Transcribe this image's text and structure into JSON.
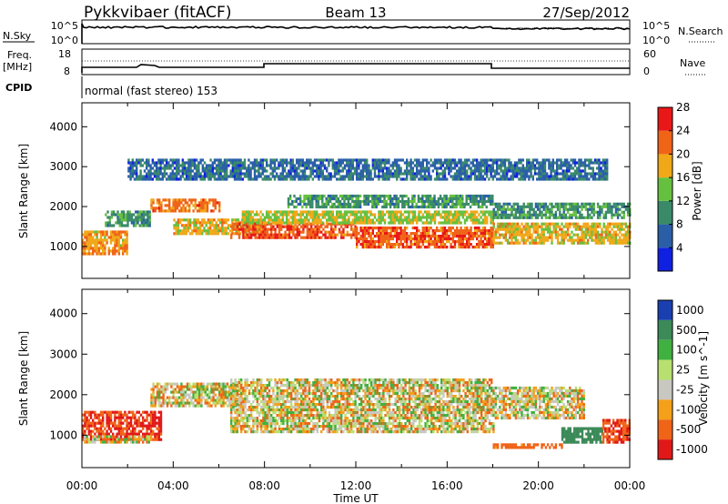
{
  "header": {
    "station": "Pykkvibaer (fitACF)",
    "beam": "Beam 13",
    "date": "27/Sep/2012"
  },
  "strip_nsky": {
    "left_label": "N.Sky",
    "right_label": "N.Search",
    "ticks": [
      "10^5",
      "10^0"
    ]
  },
  "strip_freq": {
    "left_label_1": "Freq.",
    "left_label_2": "[MHz]",
    "right_label": "Nave",
    "left_ticks": [
      "18",
      "8"
    ],
    "right_ticks": [
      "60",
      "0"
    ]
  },
  "cpid": {
    "label": "CPID",
    "mode": "normal (fast stereo) 153"
  },
  "chart_data": [
    {
      "type": "heatmap",
      "title": "",
      "xlabel": "Time UT",
      "ylabel": "Slant Range [km]",
      "x_ticks": [
        "00:00",
        "04:00",
        "08:00",
        "12:00",
        "16:00",
        "20:00",
        "00:00"
      ],
      "xlim_hours": [
        0,
        24
      ],
      "ylim": [
        200,
        4600
      ],
      "y_ticks": [
        1000,
        2000,
        3000,
        4000
      ],
      "colorbar": {
        "label": "Power [dB]",
        "ticks": [
          "4",
          "8",
          "12",
          "16",
          "20",
          "24",
          "28"
        ],
        "range": [
          0,
          32
        ],
        "colors": [
          "#1020e0",
          "#2a5fa8",
          "#3a8a6a",
          "#66c040",
          "#f0a818",
          "#f06418",
          "#e81818"
        ]
      },
      "bands": [
        {
          "t": [
            0,
            2
          ],
          "range_km": [
            800,
            1400
          ],
          "dB": 22
        },
        {
          "t": [
            1,
            3
          ],
          "range_km": [
            1500,
            1900
          ],
          "dB": 12
        },
        {
          "t": [
            3,
            6
          ],
          "range_km": [
            1900,
            2200
          ],
          "dB": 24
        },
        {
          "t": [
            4,
            8
          ],
          "range_km": [
            1300,
            1700
          ],
          "dB": 20
        },
        {
          "t": [
            6.5,
            12
          ],
          "range_km": [
            1200,
            1600
          ],
          "dB": 26
        },
        {
          "t": [
            7,
            18
          ],
          "range_km": [
            1600,
            1900
          ],
          "dB": 18
        },
        {
          "t": [
            9,
            18
          ],
          "range_km": [
            2000,
            2300
          ],
          "dB": 12
        },
        {
          "t": [
            12,
            18
          ],
          "range_km": [
            1000,
            1500
          ],
          "dB": 26
        },
        {
          "t": [
            18,
            24
          ],
          "range_km": [
            1100,
            1600
          ],
          "dB": 20
        },
        {
          "t": [
            18,
            24
          ],
          "range_km": [
            1700,
            2100
          ],
          "dB": 12
        },
        {
          "t": [
            2,
            23
          ],
          "range_km": [
            2700,
            3200
          ],
          "dB": 8
        }
      ]
    },
    {
      "type": "heatmap",
      "title": "",
      "xlabel": "Time UT",
      "ylabel": "Slant Range [km]",
      "x_ticks": [
        "00:00",
        "04:00",
        "08:00",
        "12:00",
        "16:00",
        "20:00",
        "00:00"
      ],
      "xlim_hours": [
        0,
        24
      ],
      "ylim": [
        200,
        4600
      ],
      "y_ticks": [
        1000,
        2000,
        3000,
        4000
      ],
      "colorbar": {
        "label": "Velocity [m s^-1]",
        "ticks": [
          "1000",
          "500",
          "100",
          "25",
          "-25",
          "-100",
          "-500",
          "-1000"
        ],
        "colors": [
          "#1a3fb0",
          "#3c8a58",
          "#40b040",
          "#b8e070",
          "#c8c8c0",
          "#f4a018",
          "#f06418",
          "#e01818"
        ]
      },
      "bands": [
        {
          "t": [
            0,
            3.5
          ],
          "range_km": [
            900,
            1600
          ],
          "vel": -300
        },
        {
          "t": [
            0,
            3
          ],
          "range_km": [
            800,
            1000
          ],
          "vel": 0
        },
        {
          "t": [
            3,
            7
          ],
          "range_km": [
            1700,
            2300
          ],
          "vel": 0
        },
        {
          "t": [
            6.5,
            18
          ],
          "range_km": [
            1100,
            2400
          ],
          "vel": 0
        },
        {
          "t": [
            18,
            22
          ],
          "range_km": [
            1400,
            2200
          ],
          "vel": 0
        },
        {
          "t": [
            21,
            22.8
          ],
          "range_km": [
            800,
            1200
          ],
          "vel": 600
        },
        {
          "t": [
            22.8,
            24
          ],
          "range_km": [
            800,
            1400
          ],
          "vel": -300
        },
        {
          "t": [
            18,
            21
          ],
          "range_km": [
            700,
            800
          ],
          "vel": -150
        }
      ]
    }
  ]
}
